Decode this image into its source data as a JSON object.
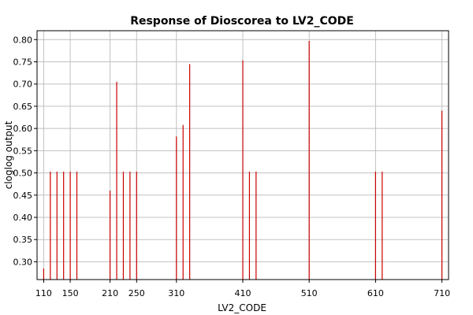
{
  "chart_data": {
    "type": "bar",
    "title": "Response of Dioscorea to LV2_CODE",
    "xlabel": "LV2_CODE",
    "ylabel": "cloglog output",
    "xlim": [
      100,
      720
    ],
    "ylim": [
      0.26,
      0.82
    ],
    "grid": true,
    "x_ticks": [
      110,
      150,
      210,
      250,
      310,
      410,
      510,
      610,
      710
    ],
    "y_ticks": [
      0.3,
      0.35,
      0.4,
      0.45,
      0.5,
      0.55,
      0.6,
      0.65,
      0.7,
      0.75,
      0.8
    ],
    "series": [
      {
        "x": [
          110,
          120,
          130,
          140,
          150,
          160,
          210,
          220,
          230,
          240,
          250,
          310,
          320,
          330,
          410,
          420,
          430,
          510,
          610,
          620,
          710
        ],
        "values": [
          0.285,
          0.503,
          0.503,
          0.503,
          0.503,
          0.503,
          0.46,
          0.705,
          0.503,
          0.503,
          0.503,
          0.582,
          0.608,
          0.745,
          0.753,
          0.503,
          0.503,
          0.797,
          0.503,
          0.503,
          0.64
        ]
      }
    ],
    "colors": {
      "bar": "#cc0000",
      "grid": "#c0c0c0",
      "axis": "#000000",
      "background": "#ffffff"
    }
  }
}
